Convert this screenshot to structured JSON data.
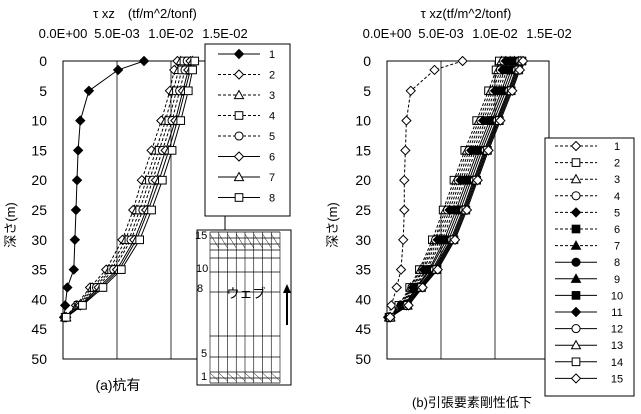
{
  "chart_data": [
    {
      "type": "line",
      "panel_label": "(a)杭有",
      "xlabel": "τ xz　(tf/m^2/tonf)",
      "ylabel": "深さ(m)",
      "xlim": [
        0,
        0.015
      ],
      "ylim": [
        50,
        0
      ],
      "x_ticks": [
        "0.0E+00",
        "5.0E-03",
        "1.0E-02",
        "1.5E-02"
      ],
      "y_ticks": [
        "0",
        "5",
        "10",
        "15",
        "20",
        "25",
        "30",
        "35",
        "40",
        "45",
        "50"
      ],
      "grid": true,
      "legend_position": "top-right",
      "inset": {
        "label": "ウェブ",
        "scale_labels": [
          "15",
          "10",
          "8",
          "5",
          "1"
        ]
      },
      "depth": [
        0,
        1.5,
        5,
        10,
        15,
        20,
        25,
        30,
        35,
        38,
        41,
        43
      ],
      "series": [
        {
          "name": "1",
          "marker": "diamond-filled",
          "dash": "solid",
          "values": [
            0.0075,
            0.0051,
            0.0024,
            0.0016,
            0.0014,
            0.0013,
            0.0012,
            0.0011,
            0.001,
            0.0004,
            0.0002,
            0.0001
          ]
        },
        {
          "name": "2",
          "marker": "diamond-open",
          "dash": "dashed",
          "values": [
            0.0106,
            0.0103,
            0.0099,
            0.0091,
            0.0082,
            0.0073,
            0.0065,
            0.0055,
            0.004,
            0.0025,
            0.0012,
            0.0002
          ]
        },
        {
          "name": "3",
          "marker": "triangle-open",
          "dash": "dashed",
          "values": [
            0.0109,
            0.0107,
            0.0102,
            0.0095,
            0.0086,
            0.0077,
            0.0068,
            0.0058,
            0.0043,
            0.0027,
            0.0013,
            0.0002
          ]
        },
        {
          "name": "4",
          "marker": "square-open",
          "dash": "dashed",
          "values": [
            0.0112,
            0.011,
            0.0105,
            0.0098,
            0.0089,
            0.008,
            0.0071,
            0.0061,
            0.0045,
            0.0029,
            0.0014,
            0.0002
          ]
        },
        {
          "name": "5",
          "marker": "circle-open",
          "dash": "dashed",
          "values": [
            0.0115,
            0.0113,
            0.0108,
            0.0101,
            0.0092,
            0.0083,
            0.0074,
            0.0063,
            0.0047,
            0.0031,
            0.0015,
            0.0003
          ]
        },
        {
          "name": "6",
          "marker": "diamond-open",
          "dash": "solid",
          "values": [
            0.0118,
            0.0116,
            0.0111,
            0.0104,
            0.0095,
            0.0086,
            0.0077,
            0.0066,
            0.005,
            0.0033,
            0.0016,
            0.0003
          ]
        },
        {
          "name": "7",
          "marker": "triangle-open",
          "dash": "solid",
          "values": [
            0.012,
            0.0118,
            0.0113,
            0.0106,
            0.0098,
            0.0089,
            0.0079,
            0.0068,
            0.0052,
            0.0035,
            0.0017,
            0.0003
          ]
        },
        {
          "name": "8",
          "marker": "square-open",
          "dash": "solid",
          "values": [
            0.0122,
            0.012,
            0.0116,
            0.0109,
            0.0101,
            0.0092,
            0.0082,
            0.0071,
            0.0054,
            0.0037,
            0.0018,
            0.0003
          ]
        }
      ]
    },
    {
      "type": "line",
      "panel_label": "(b)引張要素剛性低下",
      "xlabel": "τ xz(tf/m^2/tonf)",
      "ylabel": "深さ(m)",
      "xlim": [
        0,
        0.015
      ],
      "ylim": [
        50,
        0
      ],
      "x_ticks": [
        "0.0E+00",
        "5.0E-03",
        "1.0E-02",
        "1.5E-02"
      ],
      "y_ticks": [
        "0",
        "5",
        "10",
        "15",
        "20",
        "25",
        "30",
        "35",
        "40",
        "45",
        "50"
      ],
      "grid": true,
      "legend_position": "bottom-right",
      "depth": [
        0,
        1.5,
        5,
        10,
        15,
        20,
        25,
        30,
        35,
        38,
        41,
        43
      ],
      "series": [
        {
          "name": "1",
          "marker": "diamond-open",
          "dash": "dashed",
          "values": [
            0.007,
            0.0044,
            0.0022,
            0.0018,
            0.0017,
            0.0016,
            0.0016,
            0.0015,
            0.0013,
            0.0009,
            0.0004,
            0.0001
          ]
        },
        {
          "name": "2",
          "marker": "square-open",
          "dash": "dashed",
          "values": [
            0.0104,
            0.0101,
            0.0094,
            0.0083,
            0.0072,
            0.0062,
            0.0052,
            0.0042,
            0.003,
            0.0021,
            0.0011,
            0.0002
          ]
        },
        {
          "name": "3",
          "marker": "triangle-open",
          "dash": "dashed",
          "values": [
            0.0106,
            0.0103,
            0.0096,
            0.0085,
            0.0074,
            0.0064,
            0.0054,
            0.0044,
            0.0031,
            0.0022,
            0.0012,
            0.0002
          ]
        },
        {
          "name": "4",
          "marker": "circle-open",
          "dash": "dashed",
          "values": [
            0.0108,
            0.0105,
            0.0098,
            0.0087,
            0.0076,
            0.0066,
            0.0056,
            0.0045,
            0.0033,
            0.0023,
            0.0013,
            0.0002
          ]
        },
        {
          "name": "5",
          "marker": "diamond-filled",
          "dash": "dashed",
          "values": [
            0.011,
            0.0107,
            0.01,
            0.0089,
            0.0078,
            0.0068,
            0.0058,
            0.0047,
            0.0034,
            0.0024,
            0.0013,
            0.0002
          ]
        },
        {
          "name": "6",
          "marker": "square-filled",
          "dash": "dashed",
          "values": [
            0.0112,
            0.0109,
            0.0102,
            0.0091,
            0.008,
            0.007,
            0.006,
            0.0049,
            0.0036,
            0.0025,
            0.0014,
            0.0002
          ]
        },
        {
          "name": "7",
          "marker": "triangle-filled",
          "dash": "dashed",
          "values": [
            0.0114,
            0.0111,
            0.0104,
            0.0093,
            0.0082,
            0.0072,
            0.0062,
            0.0051,
            0.0037,
            0.0026,
            0.0015,
            0.0003
          ]
        },
        {
          "name": "8",
          "marker": "circle-filled",
          "dash": "solid",
          "values": [
            0.0116,
            0.0113,
            0.0106,
            0.0095,
            0.0084,
            0.0074,
            0.0064,
            0.0053,
            0.0039,
            0.0027,
            0.0016,
            0.0003
          ]
        },
        {
          "name": "9",
          "marker": "triangle-filled",
          "dash": "solid",
          "values": [
            0.0118,
            0.0115,
            0.0108,
            0.0097,
            0.0086,
            0.0076,
            0.0066,
            0.0055,
            0.004,
            0.0028,
            0.0016,
            0.0003
          ]
        },
        {
          "name": "10",
          "marker": "square-filled",
          "dash": "solid",
          "values": [
            0.012,
            0.0117,
            0.011,
            0.0099,
            0.0088,
            0.0078,
            0.0068,
            0.0057,
            0.0042,
            0.0029,
            0.0017,
            0.0003
          ]
        },
        {
          "name": "11",
          "marker": "diamond-filled",
          "dash": "solid",
          "values": [
            0.0122,
            0.0119,
            0.0112,
            0.0101,
            0.009,
            0.008,
            0.007,
            0.0059,
            0.0043,
            0.003,
            0.0018,
            0.0003
          ]
        },
        {
          "name": "12",
          "marker": "circle-open",
          "dash": "solid",
          "values": [
            0.0123,
            0.012,
            0.0113,
            0.0102,
            0.0091,
            0.0081,
            0.0071,
            0.006,
            0.0044,
            0.0031,
            0.0018,
            0.0003
          ]
        },
        {
          "name": "13",
          "marker": "triangle-open",
          "dash": "solid",
          "values": [
            0.0124,
            0.0121,
            0.0114,
            0.0103,
            0.0092,
            0.0082,
            0.0072,
            0.0061,
            0.0045,
            0.0031,
            0.0019,
            0.0003
          ]
        },
        {
          "name": "14",
          "marker": "square-open",
          "dash": "solid",
          "values": [
            0.0125,
            0.0122,
            0.0115,
            0.0104,
            0.0093,
            0.0083,
            0.0073,
            0.0062,
            0.0046,
            0.0032,
            0.0019,
            0.0003
          ]
        },
        {
          "name": "15",
          "marker": "diamond-open",
          "dash": "solid",
          "values": [
            0.0126,
            0.0123,
            0.0116,
            0.0105,
            0.0094,
            0.0084,
            0.0074,
            0.0063,
            0.0047,
            0.0033,
            0.002,
            0.0003
          ]
        }
      ]
    }
  ]
}
